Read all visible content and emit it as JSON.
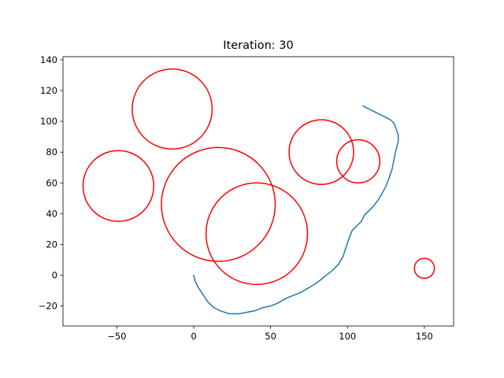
{
  "chart_data": {
    "type": "line",
    "title": "Iteration: 30",
    "xlabel": "",
    "ylabel": "",
    "xlim": [
      -85,
      169
    ],
    "ylim": [
      -33,
      142
    ],
    "xticks": [
      -50,
      0,
      50,
      100,
      150
    ],
    "yticks": [
      -20,
      0,
      20,
      40,
      60,
      80,
      100,
      120,
      140
    ],
    "grid": false,
    "legend": "none",
    "colors": {
      "path": "#1f77b4",
      "obstacle": "#ff0000"
    },
    "series": [
      {
        "points": [
          [
            0,
            0
          ],
          [
            1,
            -4
          ],
          [
            3,
            -8
          ],
          [
            5,
            -11
          ],
          [
            7,
            -14
          ],
          [
            9,
            -17
          ],
          [
            11,
            -19
          ],
          [
            13,
            -21
          ],
          [
            15,
            -22
          ],
          [
            17,
            -23
          ],
          [
            20,
            -24
          ],
          [
            23,
            -25
          ],
          [
            26,
            -25
          ],
          [
            30,
            -25
          ],
          [
            35,
            -24
          ],
          [
            40,
            -23
          ],
          [
            45,
            -21
          ],
          [
            50,
            -20
          ],
          [
            55,
            -18
          ],
          [
            60,
            -15
          ],
          [
            65,
            -13
          ],
          [
            70,
            -11
          ],
          [
            75,
            -8
          ],
          [
            80,
            -5
          ],
          [
            85,
            -1
          ],
          [
            90,
            3
          ],
          [
            94,
            7
          ],
          [
            97,
            12
          ],
          [
            99,
            18
          ],
          [
            101,
            24
          ],
          [
            103,
            29
          ],
          [
            106,
            32
          ],
          [
            109,
            35
          ],
          [
            111,
            39
          ],
          [
            114,
            42
          ],
          [
            117,
            45
          ],
          [
            120,
            49
          ],
          [
            123,
            54
          ],
          [
            125,
            58
          ],
          [
            127,
            63
          ],
          [
            129,
            69
          ],
          [
            130,
            74
          ],
          [
            131,
            79
          ],
          [
            132,
            83
          ],
          [
            133,
            87
          ],
          [
            133,
            91
          ],
          [
            132,
            94
          ],
          [
            131,
            97
          ],
          [
            130,
            99
          ],
          [
            128,
            101
          ],
          [
            126,
            102
          ],
          [
            124,
            103
          ],
          [
            122,
            104
          ],
          [
            120,
            105
          ],
          [
            118,
            106
          ],
          [
            116,
            107
          ],
          [
            114,
            108
          ],
          [
            112,
            109
          ],
          [
            110,
            110
          ]
        ]
      }
    ],
    "obstacles": [
      {
        "cx": -14,
        "cy": 108,
        "r": 26
      },
      {
        "cx": -49,
        "cy": 58,
        "r": 23
      },
      {
        "cx": 16,
        "cy": 46,
        "r": 37
      },
      {
        "cx": 41,
        "cy": 27,
        "r": 33
      },
      {
        "cx": 83,
        "cy": 80,
        "r": 21
      },
      {
        "cx": 107,
        "cy": 74,
        "r": 14
      },
      {
        "cx": 150,
        "cy": 4.5,
        "r": 6.5
      }
    ]
  }
}
